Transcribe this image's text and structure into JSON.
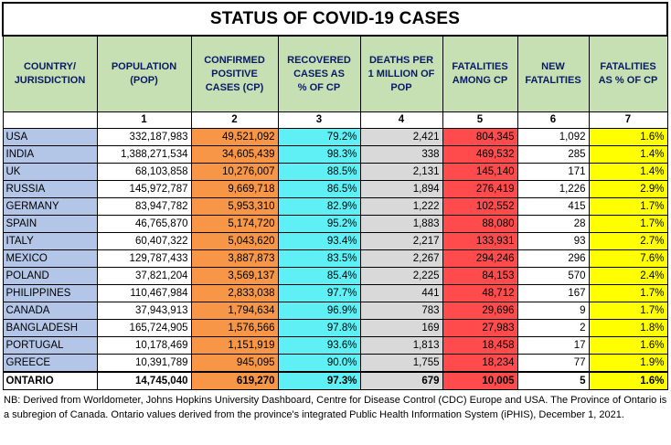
{
  "title": "STATUS OF COVID-19 CASES",
  "headers": [
    [
      "COUNTRY/",
      "JURISDICTION"
    ],
    [
      "POPULATION",
      "(POP)"
    ],
    [
      "CONFIRMED",
      "POSITIVE",
      "CASES (CP)"
    ],
    [
      "RECOVERED",
      "CASES AS",
      "% OF CP"
    ],
    [
      "DEATHS PER",
      "1 MILLION OF",
      "POP"
    ],
    [
      "FATALITIES",
      "AMONG CP"
    ],
    [
      "NEW",
      "FATALITIES"
    ],
    [
      "FATALITIES",
      "AS % OF CP"
    ]
  ],
  "column_numbers": [
    "",
    "1",
    "2",
    "3",
    "4",
    "5",
    "6",
    "7"
  ],
  "rows": [
    {
      "country": "USA",
      "pop": "332,187,983",
      "cp": "49,521,092",
      "rec": "79.2%",
      "dpm": "2,421",
      "fat": "804,345",
      "newf": "1,092",
      "pct": "1.6%"
    },
    {
      "country": "INDIA",
      "pop": "1,388,271,534",
      "cp": "34,605,439",
      "rec": "98.3%",
      "dpm": "338",
      "fat": "469,532",
      "newf": "285",
      "pct": "1.4%"
    },
    {
      "country": "UK",
      "pop": "68,103,858",
      "cp": "10,276,007",
      "rec": "88.5%",
      "dpm": "2,131",
      "fat": "145,140",
      "newf": "171",
      "pct": "1.4%"
    },
    {
      "country": "RUSSIA",
      "pop": "145,972,787",
      "cp": "9,669,718",
      "rec": "86.5%",
      "dpm": "1,894",
      "fat": "276,419",
      "newf": "1,226",
      "pct": "2.9%"
    },
    {
      "country": "GERMANY",
      "pop": "83,947,782",
      "cp": "5,953,310",
      "rec": "82.9%",
      "dpm": "1,222",
      "fat": "102,552",
      "newf": "415",
      "pct": "1.7%"
    },
    {
      "country": "SPAIN",
      "pop": "46,765,870",
      "cp": "5,174,720",
      "rec": "95.2%",
      "dpm": "1,883",
      "fat": "88,080",
      "newf": "28",
      "pct": "1.7%"
    },
    {
      "country": "ITALY",
      "pop": "60,407,322",
      "cp": "5,043,620",
      "rec": "93.4%",
      "dpm": "2,217",
      "fat": "133,931",
      "newf": "93",
      "pct": "2.7%"
    },
    {
      "country": "MEXICO",
      "pop": "129,787,433",
      "cp": "3,887,873",
      "rec": "83.5%",
      "dpm": "2,267",
      "fat": "294,246",
      "newf": "296",
      "pct": "7.6%"
    },
    {
      "country": "POLAND",
      "pop": "37,821,204",
      "cp": "3,569,137",
      "rec": "85.4%",
      "dpm": "2,225",
      "fat": "84,153",
      "newf": "570",
      "pct": "2.4%"
    },
    {
      "country": "PHILIPPINES",
      "pop": "110,467,984",
      "cp": "2,833,038",
      "rec": "97.7%",
      "dpm": "441",
      "fat": "48,712",
      "newf": "167",
      "pct": "1.7%"
    },
    {
      "country": "CANADA",
      "pop": "37,943,913",
      "cp": "1,794,634",
      "rec": "96.9%",
      "dpm": "783",
      "fat": "29,696",
      "newf": "9",
      "pct": "1.7%"
    },
    {
      "country": "BANGLADESH",
      "pop": "165,724,905",
      "cp": "1,576,566",
      "rec": "97.8%",
      "dpm": "169",
      "fat": "27,983",
      "newf": "2",
      "pct": "1.8%"
    },
    {
      "country": "PORTUGAL",
      "pop": "10,178,469",
      "cp": "1,151,919",
      "rec": "93.6%",
      "dpm": "1,813",
      "fat": "18,458",
      "newf": "17",
      "pct": "1.6%"
    },
    {
      "country": "GREECE",
      "pop": "10,391,789",
      "cp": "945,095",
      "rec": "90.0%",
      "dpm": "1,755",
      "fat": "18,234",
      "newf": "77",
      "pct": "1.9%"
    }
  ],
  "total_row": {
    "country": "ONTARIO",
    "pop": "14,745,040",
    "cp": "619,270",
    "rec": "97.3%",
    "dpm": "679",
    "fat": "10,005",
    "newf": "5",
    "pct": "1.6%"
  },
  "note": "NB: Derived from Worldometer, Johns Hopkins University Dashboard, Centre for Disease Control (CDC) Europe and USA. The Province of Ontario is a subregion of Canada. Ontario values derived from the province's integrated Public Health Information System (iPHIS), December 1, 2021."
}
